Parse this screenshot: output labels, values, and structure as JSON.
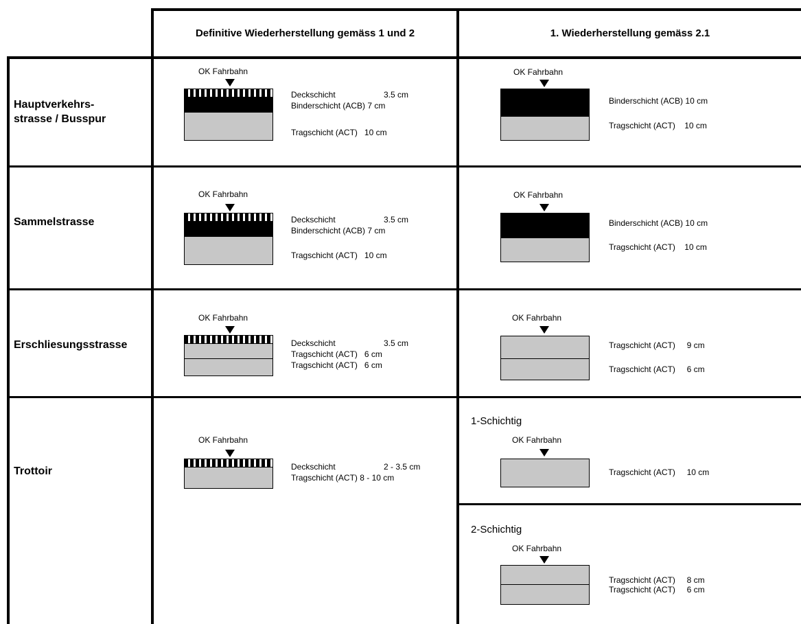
{
  "headers": {
    "col_definitive": "Definitive Wiederherstellung gemäss 1 und 2",
    "col_first": "1. Wiederherstellung gemäss 2.1"
  },
  "ok_label": "OK Fahrbahn",
  "rows": [
    {
      "label_line1": "Hauptverkehrs-",
      "label_line2": "strasse / Busspur",
      "definitive": [
        {
          "name": "Deckschicht",
          "value": "3.5 cm"
        },
        {
          "name": "Binderschicht (ACB)",
          "value": "7 cm"
        },
        {
          "name": "Tragschicht (ACT)",
          "value": "10 cm"
        }
      ],
      "first": [
        {
          "name": "Binderschicht (ACB)",
          "value": "10 cm"
        },
        {
          "name": "Tragschicht (ACT)",
          "value": "10 cm"
        }
      ]
    },
    {
      "label_line1": "Sammelstrasse",
      "definitive": [
        {
          "name": "Deckschicht",
          "value": "3.5 cm"
        },
        {
          "name": "Binderschicht (ACB)",
          "value": "7 cm"
        },
        {
          "name": "Tragschicht (ACT)",
          "value": "10 cm"
        }
      ],
      "first": [
        {
          "name": "Binderschicht (ACB)",
          "value": "10 cm"
        },
        {
          "name": "Tragschicht (ACT)",
          "value": "10 cm"
        }
      ]
    },
    {
      "label_line1": "Erschliesungsstrasse",
      "definitive": [
        {
          "name": "Deckschicht",
          "value": "3.5 cm"
        },
        {
          "name": "Tragschicht (ACT)",
          "value": "6 cm"
        },
        {
          "name": "Tragschicht (ACT)",
          "value": "6 cm"
        }
      ],
      "first": [
        {
          "name": "Tragschicht (ACT)",
          "value": "9 cm"
        },
        {
          "name": "Tragschicht (ACT)",
          "value": "6 cm"
        }
      ]
    },
    {
      "label_line1": "Trottoir",
      "definitive": [
        {
          "name": "Deckschicht",
          "value": "2 - 3.5 cm"
        },
        {
          "name": "Tragschicht (ACT)",
          "value": "8 - 10 cm"
        }
      ],
      "first_one_layer_title": "1-Schichtig",
      "first_one_layer": [
        {
          "name": "Tragschicht (ACT)",
          "value": "10 cm"
        }
      ],
      "first_two_layer_title": "2-Schichtig",
      "first_two_layer": [
        {
          "name": "Tragschicht (ACT)",
          "value": "8 cm"
        },
        {
          "name": "Tragschicht (ACT)",
          "value": "6 cm"
        }
      ]
    }
  ]
}
